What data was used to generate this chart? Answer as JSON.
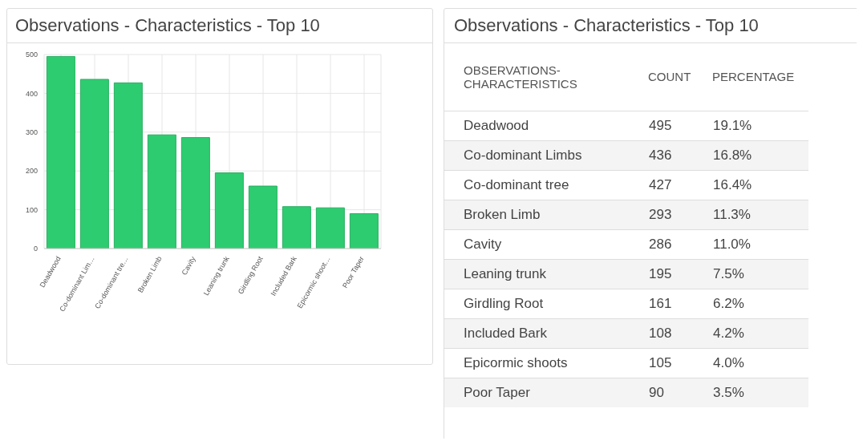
{
  "chart_data": [
    {
      "type": "bar",
      "title": "Observations - Characteristics - Top 10",
      "categories": [
        "Deadwood",
        "Co-dominant Lim…",
        "Co-dominant tre…",
        "Broken Limb",
        "Cavity",
        "Leaning trunk",
        "Girdling Root",
        "Included Bark",
        "Epicormic shoot…",
        "Poor Taper"
      ],
      "values": [
        495,
        436,
        427,
        293,
        286,
        195,
        161,
        108,
        105,
        90
      ],
      "color": "#2ecc71",
      "ylim": [
        0,
        500
      ],
      "yticks": [
        0,
        100,
        200,
        300,
        400,
        500
      ],
      "grid": true
    },
    {
      "type": "other",
      "title": "Observations - Characteristics - Top 10",
      "xlabel": "OBSERVATIONS-CHARACTERISTICS",
      "categories": [
        "Deadwood",
        "Co-dominant Limbs",
        "Co-dominant tree",
        "Broken Limb",
        "Cavity",
        "Leaning trunk",
        "Girdling Root",
        "Included Bark",
        "Epicormic shoots",
        "Poor Taper"
      ],
      "data_labels": true,
      "series": [
        {
          "name": "COUNT",
          "colors": [
            "#ffffff",
            "#f4f4f4",
            "#ffffff",
            "#f4f4f4",
            "#ffffff",
            "#f4f4f4",
            "#ffffff",
            "#f4f4f4",
            "#ffffff",
            "#f4f4f4"
          ],
          "values": [
            495,
            436,
            427,
            293,
            286,
            195,
            161,
            108,
            105,
            90
          ]
        },
        {
          "name": "PERCENTAGE",
          "values": [
            19.1,
            16.8,
            16.4,
            11.3,
            11.0,
            7.5,
            6.2,
            4.2,
            4.0,
            3.5
          ],
          "value_labels": [
            "19.1%",
            "16.8%",
            "16.4%",
            "11.3%",
            "11.0%",
            "7.5%",
            "6.2%",
            "4.2%",
            "4.0%",
            "3.5%"
          ]
        }
      ]
    }
  ]
}
